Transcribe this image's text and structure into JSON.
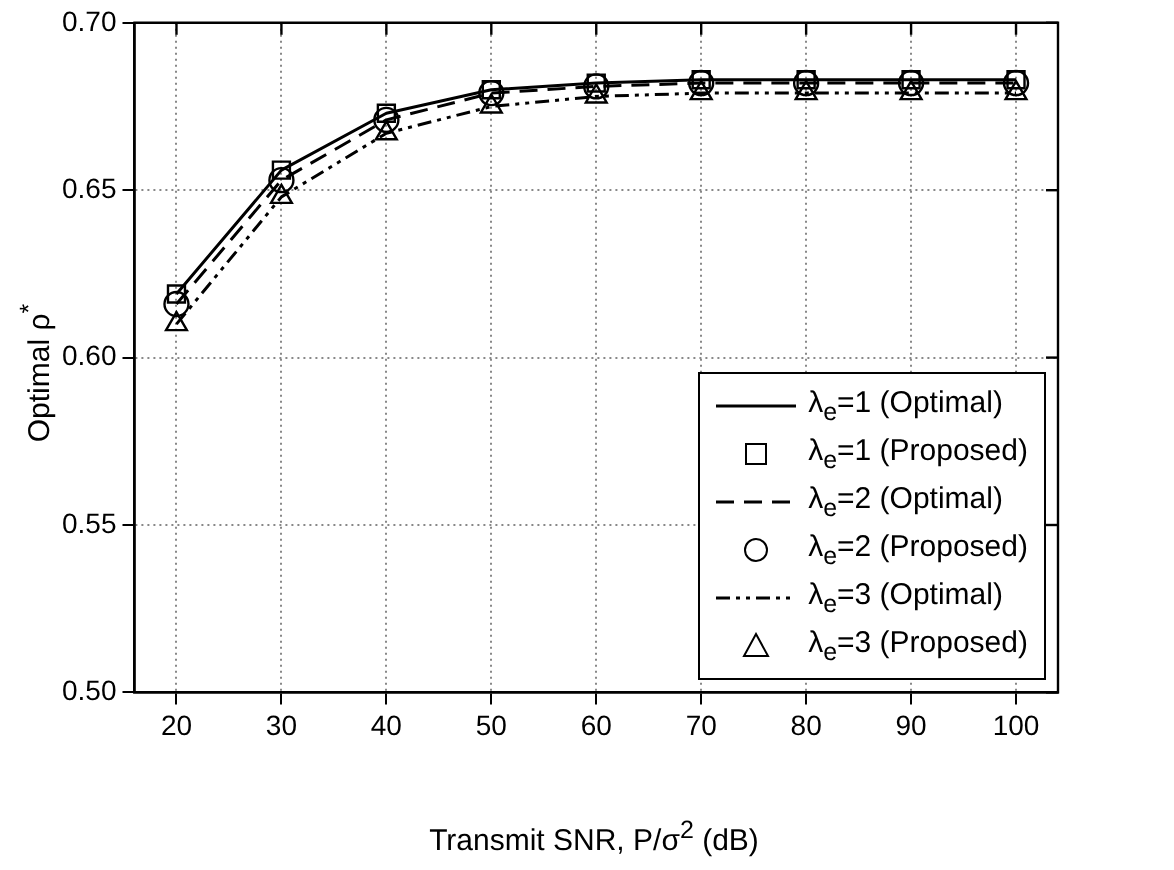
{
  "chart_data": {
    "type": "line",
    "xlabel": "Transmit SNR, P/σ$^{2}$ (dB)",
    "ylabel": "Optimal ρ$^{*}$",
    "x": [
      20,
      30,
      40,
      50,
      60,
      70,
      80,
      90,
      100
    ],
    "xlim": [
      16,
      104
    ],
    "xticks": [
      20,
      30,
      40,
      50,
      60,
      70,
      80,
      90,
      100
    ],
    "ylim": [
      0.5,
      0.7
    ],
    "yticks": [
      {
        "value": 0.5,
        "label": "0.50"
      },
      {
        "value": 0.55,
        "label": "0.55"
      },
      {
        "value": 0.6,
        "label": "0.60"
      },
      {
        "value": 0.65,
        "label": "0.65"
      },
      {
        "value": 0.7,
        "label": "0.70"
      }
    ],
    "grid": true,
    "legend": "bottom right",
    "series": [
      {
        "name": "λ$_{e}$=1 (Optimal)",
        "color": "#000000",
        "line_style": "solid",
        "marker": "none",
        "values": [
          0.619,
          0.656,
          0.673,
          0.68,
          0.682,
          0.683,
          0.683,
          0.683,
          0.683
        ]
      },
      {
        "name": "λ$_{e}$=1 (Proposed)",
        "type": "scatter",
        "color": "#000000",
        "marker": "square",
        "values": [
          0.619,
          0.656,
          0.673,
          0.68,
          0.682,
          0.683,
          0.683,
          0.683,
          0.683
        ]
      },
      {
        "name": "λ$_{e}$=2 (Optimal)",
        "color": "#000000",
        "line_style": "dashed",
        "marker": "none",
        "values": [
          0.616,
          0.653,
          0.671,
          0.679,
          0.681,
          0.682,
          0.682,
          0.682,
          0.682
        ]
      },
      {
        "name": "λ$_{e}$=2 (Proposed)",
        "type": "scatter",
        "color": "#000000",
        "marker": "circle",
        "values": [
          0.616,
          0.653,
          0.671,
          0.679,
          0.681,
          0.682,
          0.682,
          0.682,
          0.682
        ]
      },
      {
        "name": "λ$_{e}$=3 (Optimal)",
        "color": "#000000",
        "line_style": "dashdot",
        "marker": "none",
        "values": [
          0.61,
          0.648,
          0.667,
          0.675,
          0.678,
          0.679,
          0.679,
          0.679,
          0.679
        ]
      },
      {
        "name": "λ$_{e}$=3 (Proposed)",
        "type": "scatter",
        "color": "#000000",
        "marker": "triangle",
        "values": [
          0.61,
          0.648,
          0.667,
          0.675,
          0.678,
          0.679,
          0.679,
          0.679,
          0.679
        ]
      }
    ]
  }
}
